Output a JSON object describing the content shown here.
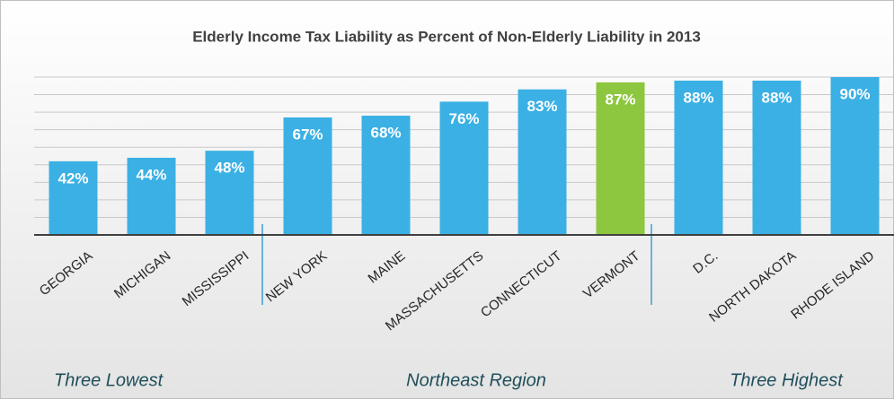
{
  "chart_data": {
    "type": "bar",
    "title": "Elderly Income Tax Liability as Percent of Non-Elderly Liability in 2013",
    "categories": [
      "GEORGIA",
      "MICHIGAN",
      "MISSISSIPPI",
      "NEW YORK",
      "MAINE",
      "MASSACHUSETTS",
      "CONNECTICUT",
      "VERMONT",
      "D.C.",
      "NORTH DAKOTA",
      "RHODE ISLAND"
    ],
    "values": [
      42,
      44,
      48,
      67,
      68,
      76,
      83,
      87,
      88,
      88,
      90
    ],
    "value_labels": [
      "42%",
      "44%",
      "48%",
      "67%",
      "68%",
      "76%",
      "83%",
      "87%",
      "88%",
      "88%",
      "90%"
    ],
    "colors": [
      "#3bb0e4",
      "#3bb0e4",
      "#3bb0e4",
      "#3bb0e4",
      "#3bb0e4",
      "#3bb0e4",
      "#3bb0e4",
      "#8dc63f",
      "#3bb0e4",
      "#3bb0e4",
      "#3bb0e4"
    ],
    "ylim": [
      0,
      90
    ],
    "yticks": [
      0,
      10,
      20,
      30,
      40,
      50,
      60,
      70,
      80,
      90
    ],
    "grid": true,
    "annotations": [
      "Three Lowest",
      "Northeast Region",
      "Three Highest"
    ]
  }
}
